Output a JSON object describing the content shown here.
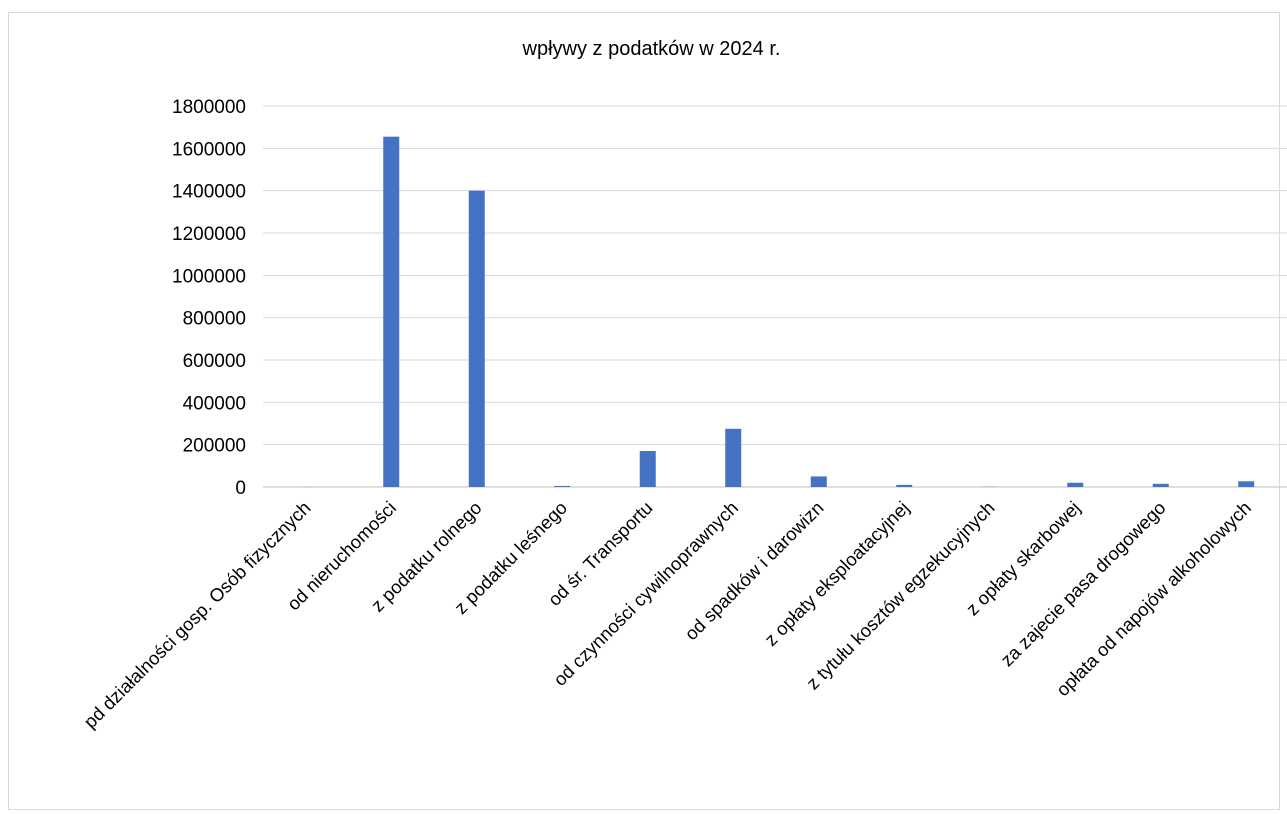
{
  "chart_data": {
    "type": "bar",
    "title": "wpływy z podatków  w 2024 r.",
    "xlabel": "",
    "ylabel": "",
    "ylim": [
      0,
      1800000
    ],
    "yticks": [
      0,
      200000,
      400000,
      600000,
      800000,
      1000000,
      1200000,
      1400000,
      1600000,
      1800000
    ],
    "grid": true,
    "legend": "none",
    "bar_color": "#4472c4",
    "categories": [
      "pd działalności gosp. Osób fizycznych",
      "od nieruchomości",
      "z podatku rolnego",
      "z podatku leśnego",
      "od śr. Transportu",
      "od czynności cywilnoprawnych",
      "od spadków i darowizn",
      "z opłaty eksploatacyjnej",
      "z tytułu kosztów egzekucyjnych",
      "z opłaty skarbowej",
      "za zajecie pasa drogowego",
      "opłata od napojów alkoholowych"
    ],
    "values": [
      500,
      1655000,
      1400000,
      5000,
      170000,
      275000,
      50000,
      10000,
      1000,
      20000,
      15000,
      27000
    ]
  }
}
